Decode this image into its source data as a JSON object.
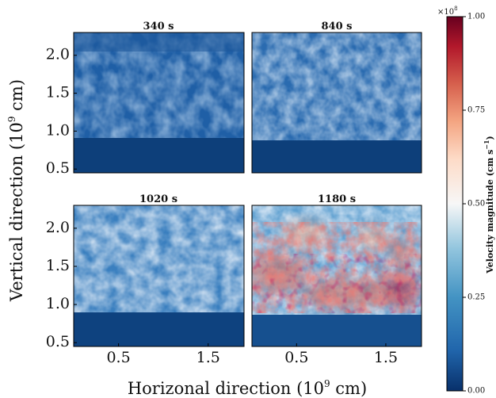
{
  "chart_data": {
    "type": "heatmap",
    "panels": [
      {
        "title": "340 s",
        "time_s": 340,
        "velocity_range_approx": [
          0.0,
          0.45
        ]
      },
      {
        "title": "840 s",
        "time_s": 840,
        "velocity_range_approx": [
          0.0,
          0.5
        ]
      },
      {
        "title": "1020 s",
        "time_s": 1020,
        "velocity_range_approx": [
          0.0,
          0.6
        ]
      },
      {
        "title": "1180 s",
        "time_s": 1180,
        "velocity_range_approx": [
          0.0,
          1.0
        ]
      }
    ],
    "xlabel": "Horizonal direction (10",
    "xlabel_exp": "9",
    "xlabel_end": " cm)",
    "ylabel": "Vertical direction (10",
    "ylabel_exp": "9",
    "ylabel_end": " cm)",
    "xticks": [
      "0.5",
      "1.5"
    ],
    "xtick_values": [
      0.5,
      1.5
    ],
    "yticks": [
      "0.5",
      "1.0",
      "1.5",
      "2.0"
    ],
    "ytick_values": [
      0.5,
      1.0,
      1.5,
      2.0
    ],
    "xlim": [
      0.0,
      1.9
    ],
    "ylim": [
      0.45,
      2.3
    ],
    "colorbar": {
      "label": "Velocity magnitude (cm s",
      "label_exp": "−1",
      "label_end": ")",
      "multiplier": "×10",
      "multiplier_exp": "8",
      "ticks": [
        "0.00",
        "0.25",
        "0.50",
        "0.75",
        "1.00"
      ],
      "tick_values": [
        0.0,
        0.25,
        0.5,
        0.75,
        1.0
      ],
      "range": [
        0.0,
        1.0
      ],
      "colormap": "RdBu_r",
      "colors": [
        "#08306b",
        "#2166ac",
        "#4393c3",
        "#92c5de",
        "#f7f7f7",
        "#fddbc7",
        "#f4a582",
        "#d6604d",
        "#b2182b",
        "#67001f"
      ]
    }
  }
}
